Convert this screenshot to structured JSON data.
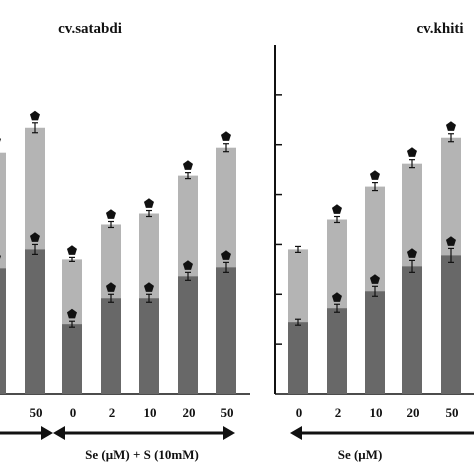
{
  "chart_data": [
    {
      "type": "bar",
      "title": "cv.satabdi",
      "categories": [
        "0",
        "50",
        "0",
        "2",
        "10",
        "20",
        "50"
      ],
      "series": [
        {
          "values": [
            126,
            145,
            70,
            96,
            96,
            118,
            127
          ],
          "errors": [
            4,
            5,
            3,
            4,
            4,
            4,
            5
          ]
        },
        {
          "values": [
            242,
            267,
            135,
            170,
            181,
            219,
            247
          ],
          "errors": [
            5,
            5,
            2,
            3,
            3,
            3,
            4
          ]
        }
      ],
      "significance_marks": [
        [
          true,
          true,
          true,
          true,
          true,
          true,
          true
        ],
        [
          true,
          true,
          true,
          true,
          true,
          true,
          true
        ]
      ],
      "group_labels": [
        "Se (μM) + S (10mM)"
      ],
      "ylim": [
        0,
        350
      ]
    },
    {
      "type": "bar",
      "title": "cv.khiti",
      "categories": [
        "0",
        "2",
        "10",
        "20",
        "50"
      ],
      "series": [
        {
          "values": [
            72,
            86,
            103,
            128,
            139
          ],
          "errors": [
            3,
            4,
            5,
            6,
            7
          ]
        },
        {
          "values": [
            145,
            175,
            208,
            231,
            257
          ],
          "errors": [
            3,
            3,
            4,
            4,
            4
          ]
        }
      ],
      "significance_marks": [
        [
          false,
          true,
          true,
          true,
          true
        ],
        [
          false,
          true,
          true,
          true,
          true
        ]
      ],
      "group_labels": [
        "Se (μM)"
      ],
      "ylim": [
        0,
        350
      ]
    }
  ],
  "colors": {
    "dark_bar": "#686868",
    "light_bar": "#b4b4b4",
    "axis": "#111111"
  }
}
